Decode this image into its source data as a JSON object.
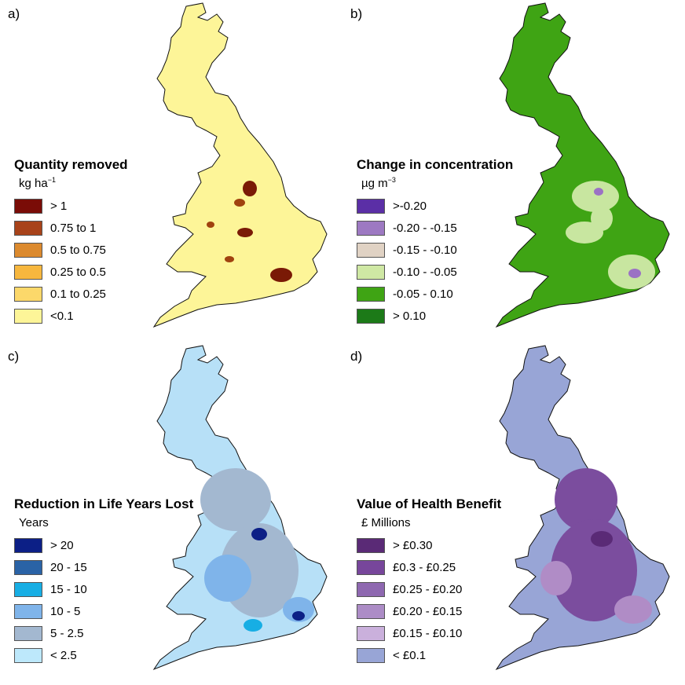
{
  "panels": [
    {
      "label": "a)",
      "legend_title": "Quantity removed",
      "unit_main": "kg ha",
      "unit_sup": "−1",
      "base_color": "#fdf598",
      "hot_colors": [
        "#7a1a06",
        "#a0420f"
      ],
      "legend": [
        {
          "label": "> 1",
          "color": "#7a0c07"
        },
        {
          "label": "0.75 to 1",
          "color": "#a8431a"
        },
        {
          "label": "0.5 to 0.75",
          "color": "#dc8a2e"
        },
        {
          "label": "0.25 to 0.5",
          "color": "#f7b73e"
        },
        {
          "label": "0.1 to 0.25",
          "color": "#fcd86a"
        },
        {
          "label": "<0.1",
          "color": "#fdf598"
        }
      ]
    },
    {
      "label": "b)",
      "legend_title": "Change in concentration",
      "unit_main": "µg m",
      "unit_sup": "−3",
      "base_color": "#3fa414",
      "hot_colors": [
        "#c8e6a0",
        "#9b72c4"
      ],
      "legend": [
        {
          "label": ">-0.20",
          "color": "#5b2fa6"
        },
        {
          "label": "-0.20 - -0.15",
          "color": "#9d79c2"
        },
        {
          "label": "-0.15 - -0.10",
          "color": "#e0d2c4"
        },
        {
          "label": "-0.10 - -0.05",
          "color": "#cfe8a4"
        },
        {
          "label": "-0.05 - 0.10",
          "color": "#3fa414"
        },
        {
          "label": "> 0.10",
          "color": "#1c7a18"
        }
      ]
    },
    {
      "label": "c)",
      "legend_title": "Reduction in Life Years Lost",
      "unit_main": "Years",
      "unit_sup": "",
      "base_color": "#b7e0f7",
      "hot_colors": [
        "#a3b8d0",
        "#7fb4ea"
      ],
      "legend": [
        {
          "label": "> 20",
          "color": "#0c1f86"
        },
        {
          "label": "20 - 15",
          "color": "#2a63a6"
        },
        {
          "label": "15 - 10",
          "color": "#17aee4"
        },
        {
          "label": "10 - 5",
          "color": "#7fb4ea"
        },
        {
          "label": "5 - 2.5",
          "color": "#a3b8d0"
        },
        {
          "label": "< 2.5",
          "color": "#bde8fb"
        }
      ]
    },
    {
      "label": "d)",
      "legend_title": "Value of Health Benefit",
      "unit_main": "£ Millions",
      "unit_sup": "",
      "base_color": "#98a5d6",
      "hot_colors": [
        "#7b4d9e",
        "#b08cc6"
      ],
      "legend": [
        {
          "label": "> £0.30",
          "color": "#5a2a76"
        },
        {
          "label": "£0.3 - £0.25",
          "color": "#77469b"
        },
        {
          "label": "£0.25 - £0.20",
          "color": "#8e68b0"
        },
        {
          "label": "£0.20 - £0.15",
          "color": "#ac8cc6"
        },
        {
          "label": "£0.15 - £0.10",
          "color": "#cab0dc"
        },
        {
          "label": "< £0.1",
          "color": "#98a5d6"
        }
      ]
    }
  ]
}
